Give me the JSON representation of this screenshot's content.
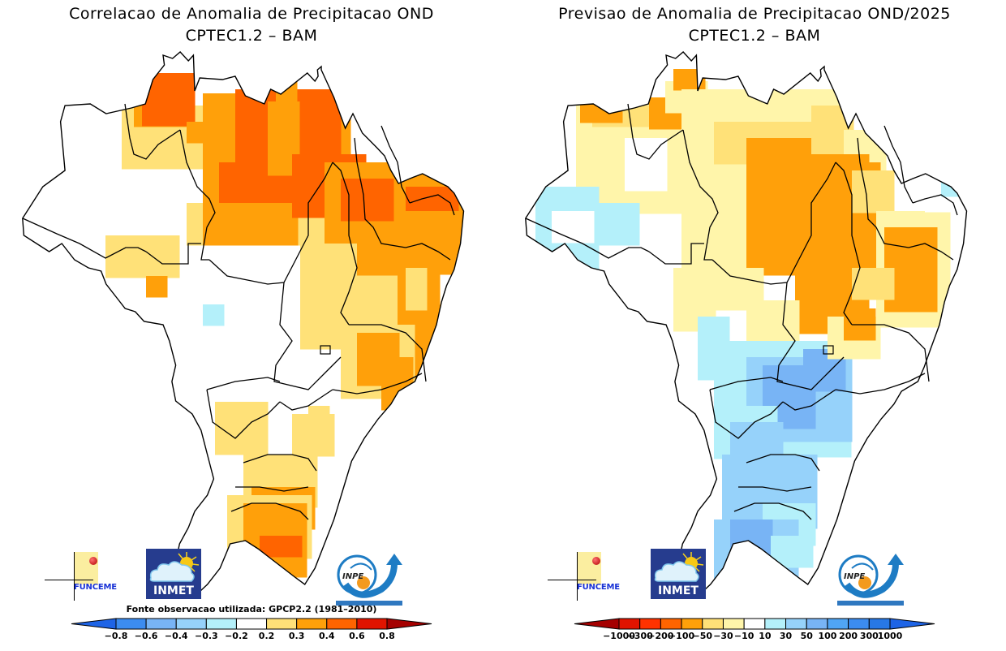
{
  "figures": [
    {
      "id": "correlation",
      "title_line1": "Correlacao de Anomalia de Precipitacao OND",
      "title_line2": "CPTEC1.2 – BAM",
      "source_note": "Fonte observacao utilizada: GPCP2.2 (1981–2010)",
      "colorbar": {
        "labels": [
          "-0.8",
          "-0.6",
          "-0.4",
          "-0.3",
          "-0.2",
          "0.2",
          "0.3",
          "0.4",
          "0.6",
          "0.8"
        ],
        "colors": [
          "#1e64e6",
          "#3c8cf0",
          "#78b4f5",
          "#96d2fa",
          "#b4f0fa",
          "#ffffff",
          "#ffe178",
          "#ffa00a",
          "#ff6400",
          "#e11400",
          "#a50000"
        ]
      },
      "logos": [
        "FUNCEME",
        "INMET",
        "INPE"
      ]
    },
    {
      "id": "forecast",
      "title_line1": "Previsao de Anomalia de Precipitacao OND/2025",
      "title_line2": "CPTEC1.2 – BAM",
      "colorbar": {
        "labels": [
          "-1000",
          "-300",
          "-200",
          "-100",
          "-50",
          "-30",
          "-10",
          "10",
          "30",
          "50",
          "100",
          "200",
          "300",
          "1000"
        ],
        "colors": [
          "#a50000",
          "#e11400",
          "#ff3200",
          "#ff6400",
          "#ffa00a",
          "#ffe178",
          "#fff5aa",
          "#ffffff",
          "#b4f0fa",
          "#96d2fa",
          "#78b4f5",
          "#50a5f5",
          "#3c8cf0",
          "#2878e6",
          "#1e64e6"
        ]
      },
      "logos": [
        "FUNCEME",
        "INMET",
        "INPE"
      ]
    }
  ],
  "chart_data": [
    {
      "type": "heatmap",
      "title": "Correlacao de Anomalia de Precipitacao OND",
      "subtitle": "CPTEC1.2 – BAM",
      "region": "Brazil",
      "variable": "Correlation of precipitation anomaly (OND)",
      "observation_source": "GPCP2.2 (1981–2010)",
      "legend_placement": "bottom",
      "class_bounds": [
        -0.8,
        -0.6,
        -0.4,
        -0.3,
        -0.2,
        0.2,
        0.3,
        0.4,
        0.6,
        0.8
      ],
      "regional_summary": {
        "Roraima": "0.6 to 0.8",
        "Amapa": "0.4 to 0.6",
        "Para": "0.4 to 0.8",
        "Maranhao": "0.4 to 0.8",
        "Piaui/Ceara": "0.4 to 0.8",
        "Northeast coast": "0.3 to 0.6",
        "Tocantins/Bahia": "0.2 to 0.4",
        "Western Amazonas/Acre/Mato Grosso": "-0.2 to 0.2",
        "Minas Gerais east / Espirito Santo": "0.3 to 0.8",
        "Parana / Santa Catarina": "0.2 to 0.4",
        "Rio Grande do Sul": "0.3 to 0.8"
      }
    },
    {
      "type": "heatmap",
      "title": "Previsao de Anomalia de Precipitacao OND/2025",
      "subtitle": "CPTEC1.2 – BAM",
      "region": "Brazil",
      "variable": "Forecast precipitation anomaly (mm) OND/2025",
      "legend_placement": "bottom",
      "class_bounds": [
        -1000,
        -300,
        -200,
        -100,
        -50,
        -30,
        -10,
        10,
        30,
        50,
        100,
        200,
        300,
        1000
      ],
      "regional_summary": {
        "Para (central/south)": "-100 to -50",
        "Maranhao/Piaui": "-100 to -50",
        "Bahia": "-100 to -50",
        "Amazonas (west)": "-10 to 30",
        "Amapa coast": "30 to 100",
        "Minas Gerais / Goias": "30 to 100",
        "Sao Paulo / Parana": "30 to 50",
        "Santa Catarina": "10 to 50",
        "Rio Grande do Sul": "30 to 100"
      }
    }
  ]
}
